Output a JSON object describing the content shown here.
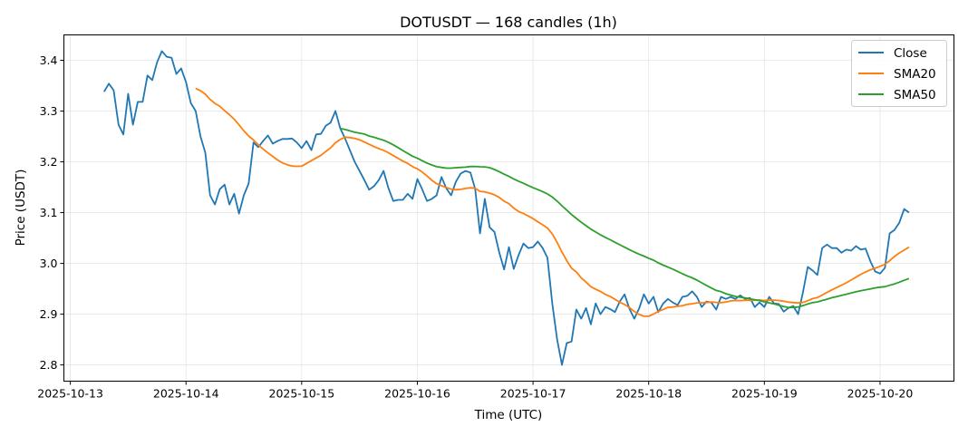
{
  "chart_data": {
    "type": "line",
    "title": "DOTUSDT — 168 candles (1h)",
    "xlabel": "Time (UTC)",
    "ylabel": "Price (USDT)",
    "start": "2025-10-13T07:00:00Z",
    "interval_hours": 1,
    "xlim": [
      "2025-10-12T22:40:00Z",
      "2025-10-20T15:20:00Z"
    ],
    "ylim": [
      2.768,
      3.45
    ],
    "x_ticks": [
      "2025-10-13",
      "2025-10-14",
      "2025-10-15",
      "2025-10-16",
      "2025-10-17",
      "2025-10-18",
      "2025-10-19",
      "2025-10-20"
    ],
    "y_ticks": [
      2.8,
      2.9,
      3.0,
      3.1,
      3.2,
      3.3,
      3.4
    ],
    "y_tick_labels": [
      "2.8",
      "2.9",
      "3.0",
      "3.1",
      "3.2",
      "3.3",
      "3.4"
    ],
    "grid": true,
    "legend_position": "top-right",
    "series": [
      {
        "name": "Close",
        "color": "#1f77b4",
        "values": [
          3.338,
          3.354,
          3.341,
          3.273,
          3.254,
          3.334,
          3.273,
          3.318,
          3.318,
          3.37,
          3.361,
          3.396,
          3.418,
          3.407,
          3.405,
          3.373,
          3.384,
          3.357,
          3.316,
          3.3,
          3.25,
          3.218,
          3.134,
          3.116,
          3.146,
          3.155,
          3.116,
          3.137,
          3.098,
          3.134,
          3.157,
          3.238,
          3.229,
          3.241,
          3.252,
          3.236,
          3.241,
          3.245,
          3.245,
          3.246,
          3.238,
          3.227,
          3.241,
          3.223,
          3.254,
          3.255,
          3.271,
          3.277,
          3.3,
          3.266,
          3.246,
          3.223,
          3.2,
          3.182,
          3.164,
          3.145,
          3.152,
          3.164,
          3.182,
          3.148,
          3.123,
          3.125,
          3.125,
          3.137,
          3.127,
          3.166,
          3.146,
          3.123,
          3.127,
          3.134,
          3.17,
          3.148,
          3.134,
          3.161,
          3.177,
          3.182,
          3.179,
          3.146,
          3.059,
          3.127,
          3.071,
          3.062,
          3.021,
          2.988,
          3.032,
          2.989,
          3.016,
          3.039,
          3.03,
          3.032,
          3.043,
          3.03,
          3.011,
          2.92,
          2.85,
          2.8,
          2.843,
          2.846,
          2.909,
          2.891,
          2.912,
          2.88,
          2.921,
          2.9,
          2.914,
          2.91,
          2.904,
          2.925,
          2.939,
          2.911,
          2.891,
          2.911,
          2.939,
          2.921,
          2.934,
          2.904,
          2.921,
          2.93,
          2.923,
          2.918,
          2.934,
          2.936,
          2.945,
          2.934,
          2.914,
          2.925,
          2.923,
          2.909,
          2.934,
          2.93,
          2.934,
          2.93,
          2.937,
          2.93,
          2.932,
          2.914,
          2.923,
          2.914,
          2.934,
          2.921,
          2.92,
          2.905,
          2.912,
          2.916,
          2.9,
          2.943,
          2.993,
          2.986,
          2.977,
          3.03,
          3.037,
          3.03,
          3.03,
          3.021,
          3.027,
          3.025,
          3.034,
          3.027,
          3.029,
          3.004,
          2.984,
          2.98,
          2.991,
          3.059,
          3.066,
          3.08,
          3.107,
          3.1
        ]
      },
      {
        "name": "SMA20",
        "color": "#ff7f0e",
        "window": 20
      },
      {
        "name": "SMA50",
        "color": "#2ca02c",
        "window": 50
      }
    ]
  }
}
